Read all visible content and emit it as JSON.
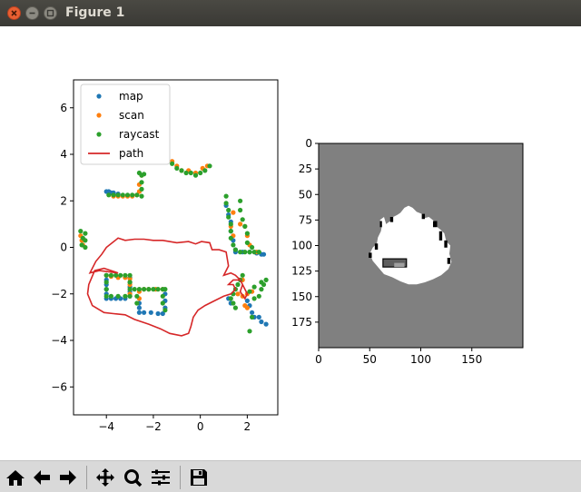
{
  "window": {
    "title": "Figure 1",
    "buttons": [
      "close-icon",
      "minimize-icon",
      "maximize-icon"
    ]
  },
  "toolbar": {
    "buttons": [
      "home-icon",
      "back-arrow-icon",
      "forward-arrow-icon",
      "pan-icon",
      "zoom-icon",
      "subplots-config-icon",
      "save-icon"
    ]
  },
  "colors": {
    "map": "#1f77b4",
    "scan": "#ff7f0e",
    "raycast": "#2ca02c",
    "path": "#d62728",
    "occupancy_unknown": "#808080",
    "occupancy_free": "#ffffff",
    "occupancy_occupied": "#000000"
  },
  "chart_data": [
    {
      "type": "scatter",
      "title": "",
      "xlabel": "",
      "ylabel": "",
      "xlim": [
        -5.4,
        3.3
      ],
      "ylim": [
        -7.2,
        7.2
      ],
      "xticks": [
        -4,
        -2,
        0,
        2
      ],
      "yticks": [
        -6,
        -4,
        -2,
        0,
        2,
        4,
        6
      ],
      "legend": {
        "position": "top-left",
        "entries": [
          "map",
          "scan",
          "raycast",
          "path"
        ]
      },
      "series": [
        {
          "name": "map",
          "marker": "dot",
          "points": [
            [
              -4.0,
              2.4
            ],
            [
              -3.9,
              2.4
            ],
            [
              -3.8,
              2.35
            ],
            [
              -3.7,
              2.35
            ],
            [
              -3.5,
              2.3
            ],
            [
              -4.0,
              -1.2
            ],
            [
              -4.0,
              -1.4
            ],
            [
              -4.0,
              -1.6
            ],
            [
              -4.0,
              -1.8
            ],
            [
              -4.0,
              -2.0
            ],
            [
              -4.0,
              -2.2
            ],
            [
              -3.8,
              -2.2
            ],
            [
              -3.6,
              -2.2
            ],
            [
              -3.4,
              -2.2
            ],
            [
              -3.2,
              -2.2
            ],
            [
              -3.0,
              -1.3
            ],
            [
              -3.0,
              -1.5
            ],
            [
              -3.0,
              -1.7
            ],
            [
              -3.0,
              -1.9
            ],
            [
              -3.0,
              -2.1
            ],
            [
              -2.6,
              -2.4
            ],
            [
              -2.6,
              -2.6
            ],
            [
              -2.6,
              -2.8
            ],
            [
              -2.4,
              -2.8
            ],
            [
              -2.1,
              -2.8
            ],
            [
              -1.8,
              -2.85
            ],
            [
              -1.6,
              -2.85
            ],
            [
              -1.5,
              -2.0
            ],
            [
              -1.5,
              -2.3
            ],
            [
              -1.5,
              -2.6
            ],
            [
              1.1,
              1.8
            ],
            [
              1.2,
              1.4
            ],
            [
              1.3,
              1.1
            ],
            [
              1.3,
              0.7
            ],
            [
              1.4,
              0.3
            ],
            [
              1.5,
              -0.1
            ],
            [
              1.5,
              -0.2
            ],
            [
              1.8,
              -0.2
            ],
            [
              2.1,
              -0.2
            ],
            [
              2.4,
              -0.25
            ],
            [
              2.6,
              -0.3
            ],
            [
              2.7,
              -0.3
            ],
            [
              2.0,
              -2.3
            ],
            [
              2.1,
              -2.5
            ],
            [
              2.2,
              -2.8
            ],
            [
              2.3,
              -3.0
            ],
            [
              2.5,
              -3.0
            ],
            [
              2.6,
              -3.2
            ],
            [
              2.8,
              -3.3
            ],
            [
              1.2,
              -2.2
            ],
            [
              1.3,
              -2.4
            ]
          ]
        },
        {
          "name": "scan",
          "marker": "dot",
          "points": [
            [
              -5.1,
              0.5
            ],
            [
              -5.05,
              0.3
            ],
            [
              -5.0,
              0.1
            ],
            [
              -3.7,
              2.2
            ],
            [
              -3.5,
              2.2
            ],
            [
              -3.3,
              2.2
            ],
            [
              -3.1,
              2.2
            ],
            [
              -2.9,
              2.2
            ],
            [
              -2.7,
              2.25
            ],
            [
              -2.6,
              2.4
            ],
            [
              -2.6,
              2.7
            ],
            [
              -2.5,
              3.1
            ],
            [
              -4.0,
              -1.2
            ],
            [
              -3.8,
              -1.25
            ],
            [
              -3.5,
              -1.3
            ],
            [
              -3.2,
              -1.3
            ],
            [
              -3.0,
              -1.35
            ],
            [
              -3.0,
              -1.6
            ],
            [
              -3.0,
              -2.0
            ],
            [
              -2.6,
              -1.9
            ],
            [
              -2.6,
              -2.2
            ],
            [
              -2.4,
              -1.8
            ],
            [
              -2.2,
              -1.8
            ],
            [
              -1.9,
              -1.8
            ],
            [
              -1.6,
              -1.8
            ],
            [
              -1.2,
              3.7
            ],
            [
              -1.0,
              3.5
            ],
            [
              -0.8,
              3.3
            ],
            [
              -0.5,
              3.3
            ],
            [
              -0.2,
              3.2
            ],
            [
              0.1,
              3.4
            ],
            [
              0.3,
              3.5
            ],
            [
              1.4,
              1.5
            ],
            [
              1.3,
              0.9
            ],
            [
              1.4,
              0.5
            ],
            [
              1.7,
              1.0
            ],
            [
              1.9,
              0.9
            ],
            [
              2.0,
              0.5
            ],
            [
              2.1,
              0.1
            ],
            [
              2.4,
              -0.2
            ],
            [
              1.8,
              -1.4
            ],
            [
              1.6,
              -2.0
            ],
            [
              1.8,
              -2.1
            ],
            [
              2.0,
              -2.0
            ],
            [
              2.2,
              -1.9
            ],
            [
              1.9,
              -2.5
            ],
            [
              2.0,
              -2.6
            ]
          ]
        },
        {
          "name": "raycast",
          "marker": "dot",
          "points": [
            [
              -5.1,
              0.7
            ],
            [
              -5.0,
              0.4
            ],
            [
              -5.05,
              0.1
            ],
            [
              -4.9,
              0.6
            ],
            [
              -4.9,
              0.3
            ],
            [
              -4.9,
              0.0
            ],
            [
              -3.9,
              2.25
            ],
            [
              -3.7,
              2.25
            ],
            [
              -3.5,
              2.25
            ],
            [
              -3.3,
              2.25
            ],
            [
              -3.1,
              2.25
            ],
            [
              -2.9,
              2.25
            ],
            [
              -2.7,
              2.25
            ],
            [
              -2.5,
              2.2
            ],
            [
              -2.5,
              2.5
            ],
            [
              -2.5,
              2.8
            ],
            [
              -2.5,
              3.1
            ],
            [
              -2.6,
              3.2
            ],
            [
              -2.4,
              3.15
            ],
            [
              -4.0,
              -1.2
            ],
            [
              -3.8,
              -1.2
            ],
            [
              -3.6,
              -1.2
            ],
            [
              -3.4,
              -1.2
            ],
            [
              -3.2,
              -1.2
            ],
            [
              -3.0,
              -1.2
            ],
            [
              -4.0,
              -1.5
            ],
            [
              -4.0,
              -1.8
            ],
            [
              -4.0,
              -2.1
            ],
            [
              -3.8,
              -2.1
            ],
            [
              -3.5,
              -2.1
            ],
            [
              -3.2,
              -2.1
            ],
            [
              -3.0,
              -1.5
            ],
            [
              -3.0,
              -1.8
            ],
            [
              -3.0,
              -2.1
            ],
            [
              -2.8,
              -1.8
            ],
            [
              -2.6,
              -1.8
            ],
            [
              -2.4,
              -1.8
            ],
            [
              -2.2,
              -1.8
            ],
            [
              -2.0,
              -1.8
            ],
            [
              -1.8,
              -1.8
            ],
            [
              -1.6,
              -1.8
            ],
            [
              -1.5,
              -1.8
            ],
            [
              -2.7,
              -2.1
            ],
            [
              -2.7,
              -2.4
            ],
            [
              -1.6,
              -2.1
            ],
            [
              -1.6,
              -2.4
            ],
            [
              -1.5,
              -2.7
            ],
            [
              -1.6,
              3.9
            ],
            [
              -1.4,
              3.8
            ],
            [
              -1.2,
              3.6
            ],
            [
              -1.0,
              3.4
            ],
            [
              -0.8,
              3.3
            ],
            [
              -0.6,
              3.2
            ],
            [
              -0.4,
              3.2
            ],
            [
              -0.2,
              3.1
            ],
            [
              0.0,
              3.2
            ],
            [
              0.2,
              3.3
            ],
            [
              0.4,
              3.5
            ],
            [
              1.1,
              2.2
            ],
            [
              1.1,
              1.9
            ],
            [
              1.2,
              1.6
            ],
            [
              1.2,
              1.3
            ],
            [
              1.3,
              1.0
            ],
            [
              1.3,
              0.7
            ],
            [
              1.3,
              0.4
            ],
            [
              1.4,
              0.1
            ],
            [
              1.5,
              -0.1
            ],
            [
              1.7,
              2.0
            ],
            [
              1.7,
              1.6
            ],
            [
              1.8,
              1.2
            ],
            [
              1.9,
              0.9
            ],
            [
              2.0,
              0.6
            ],
            [
              2.0,
              0.2
            ],
            [
              2.2,
              0.0
            ],
            [
              1.7,
              -0.2
            ],
            [
              1.9,
              -0.2
            ],
            [
              2.1,
              -0.2
            ],
            [
              2.3,
              -0.2
            ],
            [
              2.5,
              -0.2
            ],
            [
              2.8,
              -1.4
            ],
            [
              2.7,
              -1.6
            ],
            [
              2.6,
              -1.8
            ],
            [
              2.5,
              -2.1
            ],
            [
              2.3,
              -2.2
            ],
            [
              2.1,
              -1.9
            ],
            [
              2.3,
              -1.7
            ],
            [
              2.6,
              -1.5
            ],
            [
              1.8,
              -1.2
            ],
            [
              1.7,
              -1.4
            ],
            [
              1.6,
              -1.6
            ],
            [
              1.5,
              -1.8
            ],
            [
              1.4,
              -2.0
            ],
            [
              1.3,
              -2.2
            ],
            [
              1.4,
              -2.4
            ],
            [
              1.5,
              -2.6
            ],
            [
              2.2,
              -3.0
            ],
            [
              2.1,
              -3.6
            ]
          ]
        },
        {
          "name": "path",
          "marker": "line",
          "points": [
            [
              -3.5,
              -1.1
            ],
            [
              -3.8,
              -1.0
            ],
            [
              -4.1,
              -0.9
            ],
            [
              -4.5,
              -1.0
            ],
            [
              -4.75,
              -1.6
            ],
            [
              -4.8,
              -2.0
            ],
            [
              -4.6,
              -2.5
            ],
            [
              -4.1,
              -2.8
            ],
            [
              -3.7,
              -2.85
            ],
            [
              -3.2,
              -2.9
            ],
            [
              -2.8,
              -3.1
            ],
            [
              -2.2,
              -3.3
            ],
            [
              -1.7,
              -3.5
            ],
            [
              -1.3,
              -3.7
            ],
            [
              -0.8,
              -3.8
            ],
            [
              -0.5,
              -3.7
            ],
            [
              -0.4,
              -3.4
            ],
            [
              -0.3,
              -3.0
            ],
            [
              -0.1,
              -2.7
            ],
            [
              0.2,
              -2.5
            ],
            [
              0.6,
              -2.3
            ],
            [
              1.0,
              -2.1
            ],
            [
              1.3,
              -2.0
            ],
            [
              1.5,
              -1.8
            ],
            [
              1.4,
              -1.6
            ],
            [
              1.2,
              -1.6
            ],
            [
              1.4,
              -1.4
            ],
            [
              1.7,
              -1.4
            ],
            [
              1.8,
              -1.6
            ],
            [
              1.7,
              -1.9
            ],
            [
              1.9,
              -2.2
            ],
            [
              2.0,
              -2.0
            ],
            [
              1.7,
              -1.4
            ],
            [
              1.5,
              -1.2
            ],
            [
              1.3,
              -1.1
            ],
            [
              1.0,
              -1.2
            ],
            [
              1.2,
              -0.8
            ],
            [
              1.1,
              -0.2
            ],
            [
              0.8,
              -0.1
            ],
            [
              0.5,
              -0.1
            ],
            [
              0.4,
              0.2
            ],
            [
              0.05,
              0.25
            ],
            [
              -0.2,
              0.15
            ],
            [
              -0.5,
              0.25
            ],
            [
              -1.0,
              0.2
            ],
            [
              -1.6,
              0.3
            ],
            [
              -2.0,
              0.3
            ],
            [
              -2.4,
              0.35
            ],
            [
              -2.8,
              0.35
            ],
            [
              -3.2,
              0.3
            ],
            [
              -3.5,
              0.4
            ],
            [
              -3.75,
              0.2
            ],
            [
              -4.0,
              0.0
            ],
            [
              -4.2,
              -0.3
            ],
            [
              -4.45,
              -0.6
            ],
            [
              -4.7,
              -1.1
            ],
            [
              -4.3,
              -1.0
            ],
            [
              -3.5,
              -1.1
            ]
          ]
        }
      ]
    },
    {
      "type": "heatmap",
      "title": "",
      "xlabel": "",
      "ylabel": "",
      "xlim": [
        0,
        200
      ],
      "ylim": [
        200,
        0
      ],
      "xticks": [
        0,
        50,
        100,
        150
      ],
      "yticks": [
        0,
        25,
        50,
        75,
        100,
        125,
        150,
        175
      ],
      "description_cells": "occupancy grid: gray unknown, white free area around center, black occupied edges"
    }
  ]
}
